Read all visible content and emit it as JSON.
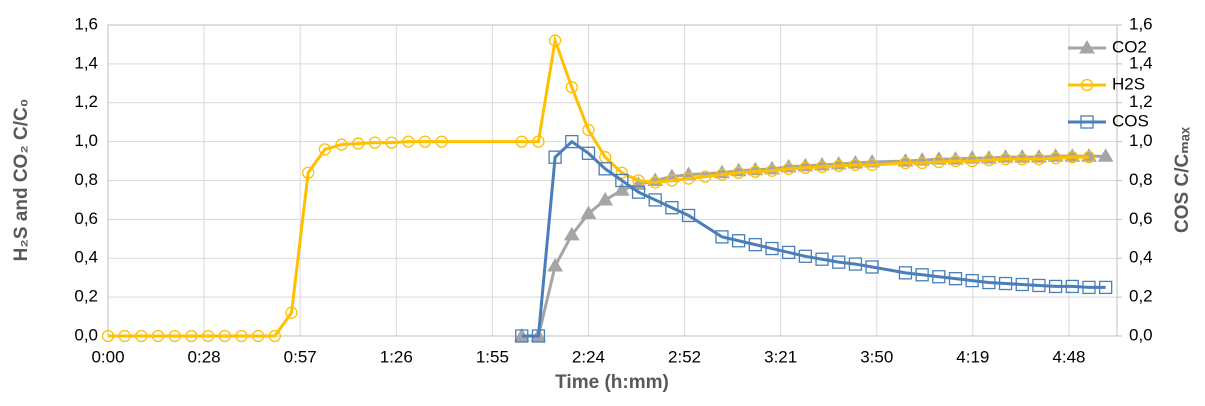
{
  "chart_data": {
    "type": "line",
    "x_label": "Time (h:mm)",
    "y_label": "H₂S and CO₂ C/C₀",
    "y2_label": "COS C/Cₘₐₓ",
    "xlim": [
      0,
      302.4
    ],
    "xticks": [
      {
        "value": 0,
        "label": "0:00"
      },
      {
        "value": 28.8,
        "label": "0:28"
      },
      {
        "value": 57.6,
        "label": "0:57"
      },
      {
        "value": 86.4,
        "label": "1:26"
      },
      {
        "value": 115.2,
        "label": "1:55"
      },
      {
        "value": 144,
        "label": "2:24"
      },
      {
        "value": 172.8,
        "label": "2:52"
      },
      {
        "value": 201.6,
        "label": "3:21"
      },
      {
        "value": 230.4,
        "label": "3:50"
      },
      {
        "value": 259.2,
        "label": "4:19"
      },
      {
        "value": 288,
        "label": "4:48"
      }
    ],
    "ylim": [
      0,
      1.6
    ],
    "yticks": [
      {
        "value": 0,
        "label": "0,0"
      },
      {
        "value": 0.2,
        "label": "0,2"
      },
      {
        "value": 0.4,
        "label": "0,4"
      },
      {
        "value": 0.6,
        "label": "0,6"
      },
      {
        "value": 0.8,
        "label": "0,8"
      },
      {
        "value": 1.0,
        "label": "1,0"
      },
      {
        "value": 1.2,
        "label": "1,2"
      },
      {
        "value": 1.4,
        "label": "1,4"
      },
      {
        "value": 1.6,
        "label": "1,6"
      }
    ],
    "y2lim": [
      0,
      1.6
    ],
    "y2ticks": [
      {
        "value": 0,
        "label": "0,0"
      },
      {
        "value": 0.2,
        "label": "0,2"
      },
      {
        "value": 0.4,
        "label": "0,4"
      },
      {
        "value": 0.6,
        "label": "0,6"
      },
      {
        "value": 0.8,
        "label": "0,8"
      },
      {
        "value": 1.0,
        "label": "1,0"
      },
      {
        "value": 1.2,
        "label": "1,2"
      },
      {
        "value": 1.4,
        "label": "1,4"
      },
      {
        "value": 1.6,
        "label": "1,6"
      }
    ],
    "grid": true,
    "legend": "upper right",
    "series": [
      {
        "name": "CO2",
        "color": "#a5a5a5",
        "marker": "triangle",
        "x": [
          124,
          129,
          134,
          139,
          144,
          149,
          154,
          159,
          164,
          169,
          174,
          184,
          189,
          194,
          199,
          204,
          209,
          214,
          219,
          224,
          229,
          239,
          244,
          249,
          254,
          259,
          264,
          269,
          274,
          279,
          284,
          289,
          294,
          299
        ],
        "values": [
          0,
          0,
          0.36,
          0.52,
          0.63,
          0.7,
          0.75,
          0.78,
          0.8,
          0.82,
          0.83,
          0.84,
          0.85,
          0.855,
          0.86,
          0.87,
          0.875,
          0.88,
          0.885,
          0.89,
          0.895,
          0.9,
          0.905,
          0.91,
          0.91,
          0.915,
          0.915,
          0.92,
          0.92,
          0.92,
          0.925,
          0.925,
          0.925,
          0.925
        ]
      },
      {
        "name": "H2S",
        "color": "#ffc000",
        "marker": "circle",
        "x": [
          0,
          5,
          10,
          15,
          20,
          25,
          30,
          35,
          40,
          45,
          50,
          55,
          60,
          65,
          70,
          75,
          80,
          85,
          90,
          95,
          100,
          124,
          129,
          134,
          139,
          144,
          149,
          154,
          159,
          164,
          169,
          174,
          179,
          184,
          189,
          194,
          199,
          204,
          209,
          214,
          219,
          224,
          229,
          239,
          244,
          249,
          254,
          259,
          264,
          269,
          274,
          279,
          284,
          289,
          294
        ],
        "values": [
          0,
          0,
          0,
          0,
          0,
          0,
          0,
          0,
          0,
          0,
          0,
          0.12,
          0.84,
          0.96,
          0.985,
          0.99,
          0.995,
          0.995,
          1.0,
          1.0,
          1.0,
          1.0,
          1.0,
          1.52,
          1.28,
          1.06,
          0.92,
          0.84,
          0.8,
          0.79,
          0.8,
          0.81,
          0.82,
          0.83,
          0.84,
          0.845,
          0.85,
          0.86,
          0.865,
          0.87,
          0.875,
          0.88,
          0.88,
          0.89,
          0.89,
          0.895,
          0.9,
          0.9,
          0.905,
          0.91,
          0.91,
          0.91,
          0.915,
          0.92,
          0.92
        ]
      },
      {
        "name": "COS",
        "color": "#4a7ebb",
        "marker": "square",
        "axis": "y2",
        "x": [
          124,
          129,
          134,
          139,
          144,
          149,
          154,
          159,
          164,
          169,
          174,
          184,
          189,
          194,
          199,
          204,
          209,
          214,
          219,
          224,
          229,
          239,
          244,
          249,
          254,
          259,
          264,
          269,
          274,
          279,
          284,
          289,
          294,
          299
        ],
        "values": [
          0,
          0,
          0.92,
          1.0,
          0.94,
          0.86,
          0.8,
          0.74,
          0.7,
          0.66,
          0.62,
          0.51,
          0.49,
          0.47,
          0.45,
          0.43,
          0.41,
          0.395,
          0.38,
          0.37,
          0.355,
          0.325,
          0.315,
          0.305,
          0.295,
          0.285,
          0.275,
          0.27,
          0.265,
          0.26,
          0.255,
          0.255,
          0.25,
          0.25
        ]
      }
    ]
  }
}
